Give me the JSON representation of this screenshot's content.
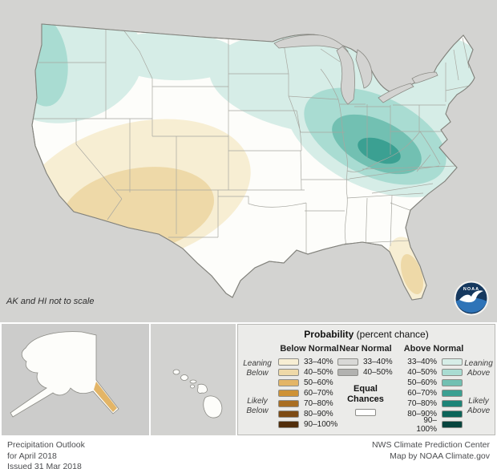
{
  "colors": {
    "above": [
      "#d6ede7",
      "#a9dcd2",
      "#72c0b2",
      "#3ba092",
      "#1d8477",
      "#0c6459",
      "#07443d"
    ],
    "below": [
      "#f7eed3",
      "#eed9a8",
      "#e3b567",
      "#ce9235",
      "#a96e22",
      "#7d4b14",
      "#512d0b"
    ],
    "near": [
      "#d8d8d6",
      "#b2b2b0"
    ],
    "equal": "#ffffff",
    "ocean": "#d3d3d1",
    "land": "#fdfdfa",
    "logo_navy": "#16395f",
    "logo_blue": "#2f74b8"
  },
  "map": {
    "note": "AK and HI not to scale"
  },
  "legend": {
    "title_bold": "Probability",
    "title_rest": " (percent chance)",
    "below_header": "Below Normal",
    "near_header": "Near Normal",
    "above_header": "Above Normal",
    "ranges": [
      "33–40%",
      "40–50%",
      "50–60%",
      "60–70%",
      "70–80%",
      "80–90%",
      "90–100%"
    ],
    "near_ranges": [
      "33–40%",
      "40–50%"
    ],
    "equal_label_1": "Equal",
    "equal_label_2": "Chances",
    "leaning_below": "Leaning Below",
    "likely_below": "Likely Below",
    "leaning_above": "Leaning Above",
    "likely_above": "Likely Above"
  },
  "footer": {
    "line1": "Precipitation Outlook",
    "line2": "for April 2018",
    "line3": "Issued 31 Mar 2018",
    "right1": "NWS Climate Prediction Center",
    "right2": "Map by NOAA Climate.gov"
  },
  "logo": {
    "label": "NOAA"
  }
}
